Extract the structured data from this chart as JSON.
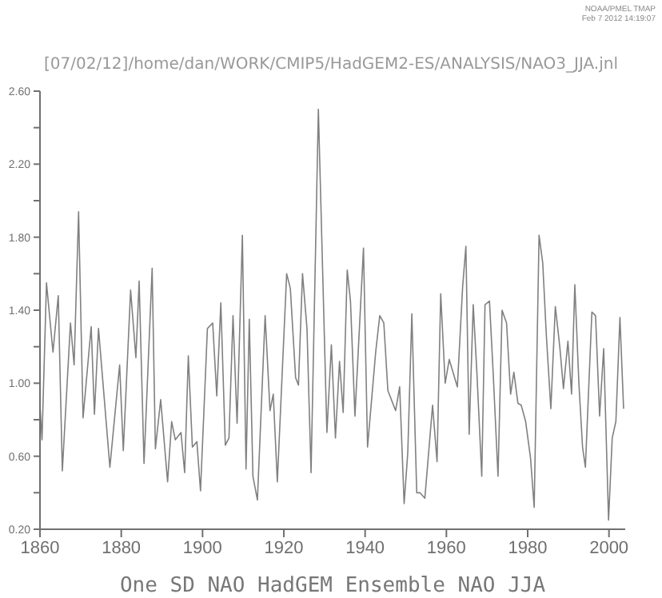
{
  "chart_data": {
    "type": "line",
    "title": "[07/02/12]/home/dan/WORK/CMIP5/HadGEM2-ES/ANALYSIS/NAO3_JJA.jnl",
    "xlabel": "One SD NAO HadGEM Ensemble NAO JJA",
    "annotations": [
      "NOAA/PMEL TMAP",
      "Feb  7 2012 14:19:07"
    ],
    "xlim": [
      1860,
      2004
    ],
    "xticks": [
      1860,
      1880,
      1900,
      1920,
      1940,
      1960,
      1980,
      2000
    ],
    "ylim": [
      0.2,
      2.6
    ],
    "yticks": [
      {
        "value": 0.2,
        "label": "0.20"
      },
      {
        "value": 0.4,
        "label": null
      },
      {
        "value": 0.6,
        "label": "0.60"
      },
      {
        "value": 0.8,
        "label": null
      },
      {
        "value": 1.0,
        "label": "1.00"
      },
      {
        "value": 1.2,
        "label": null
      },
      {
        "value": 1.4,
        "label": "1.40"
      },
      {
        "value": 1.6,
        "label": null
      },
      {
        "value": 1.8,
        "label": "1.80"
      },
      {
        "value": 2.0,
        "label": null
      },
      {
        "value": 2.2,
        "label": "2.20"
      },
      {
        "value": 2.4,
        "label": null
      },
      {
        "value": 2.6,
        "label": "2.60"
      }
    ],
    "grid": false,
    "marker": "none",
    "line_style": "solid",
    "series": [
      {
        "color": "#808080",
        "x": [
          1860.0,
          1860.5,
          1861.6,
          1863.2,
          1864.5,
          1865.5,
          1867.5,
          1868.4,
          1869.5,
          1870.6,
          1872.6,
          1873.4,
          1874.4,
          1877.2,
          1879.6,
          1880.5,
          1882.3,
          1883.6,
          1884.4,
          1885.6,
          1887.6,
          1888.4,
          1889.7,
          1891.4,
          1892.4,
          1893.3,
          1894.7,
          1895.6,
          1896.5,
          1897.5,
          1898.6,
          1899.5,
          1901.2,
          1902.5,
          1903.5,
          1904.5,
          1905.6,
          1906.5,
          1907.5,
          1908.5,
          1909.8,
          1910.7,
          1911.5,
          1912.4,
          1913.5,
          1915.4,
          1916.6,
          1917.4,
          1918.4,
          1920.7,
          1921.6,
          1922.9,
          1923.6,
          1924.6,
          1925.7,
          1926.7,
          1928.5,
          1930.6,
          1931.7,
          1932.7,
          1933.7,
          1934.6,
          1935.6,
          1936.4,
          1937.5,
          1939.6,
          1940.6,
          1942.6,
          1943.6,
          1944.6,
          1945.6,
          1947.5,
          1948.5,
          1949.6,
          1950.5,
          1951.5,
          1952.7,
          1953.5,
          1954.7,
          1956.6,
          1957.7,
          1958.6,
          1959.7,
          1960.7,
          1962.7,
          1964.0,
          1964.8,
          1965.6,
          1966.6,
          1967.5,
          1968.7,
          1969.5,
          1970.6,
          1971.5,
          1972.7,
          1973.7,
          1974.8,
          1975.8,
          1976.6,
          1977.6,
          1978.4,
          1979.5,
          1980.7,
          1981.6,
          1982.8,
          1983.7,
          1984.6,
          1985.7,
          1986.8,
          1987.9,
          1988.8,
          1989.9,
          1990.8,
          1991.6,
          1992.6,
          1993.5,
          1994.2,
          1995.8,
          1996.7,
          1997.7,
          1998.7,
          1999.9,
          2000.8,
          2001.7,
          2002.7,
          2003.6
        ],
        "values": [
          0.88,
          0.69,
          1.55,
          1.17,
          1.48,
          0.52,
          1.33,
          1.1,
          1.94,
          0.81,
          1.31,
          0.83,
          1.3,
          0.54,
          1.1,
          0.63,
          1.51,
          1.14,
          1.56,
          0.56,
          1.63,
          0.64,
          0.91,
          0.46,
          0.79,
          0.69,
          0.73,
          0.51,
          1.15,
          0.65,
          0.68,
          0.41,
          1.3,
          1.33,
          0.93,
          1.44,
          0.66,
          0.7,
          1.37,
          0.78,
          1.81,
          0.53,
          1.35,
          0.49,
          0.36,
          1.37,
          0.85,
          0.94,
          0.46,
          1.6,
          1.52,
          1.03,
          0.99,
          1.6,
          1.3,
          0.51,
          2.5,
          0.73,
          1.21,
          0.7,
          1.12,
          0.84,
          1.62,
          1.45,
          0.82,
          1.74,
          0.65,
          1.17,
          1.37,
          1.33,
          0.96,
          0.85,
          0.98,
          0.34,
          0.62,
          1.38,
          0.4,
          0.4,
          0.37,
          0.88,
          0.57,
          1.49,
          1.0,
          1.13,
          0.98,
          1.53,
          1.75,
          0.72,
          1.43,
          1.06,
          0.49,
          1.43,
          1.45,
          1.06,
          0.49,
          1.4,
          1.33,
          0.94,
          1.06,
          0.89,
          0.88,
          0.79,
          0.59,
          0.32,
          1.81,
          1.66,
          1.26,
          0.86,
          1.42,
          1.2,
          0.97,
          1.23,
          0.94,
          1.54,
          1.0,
          0.65,
          0.54,
          1.39,
          1.37,
          0.82,
          1.19,
          0.25,
          0.7,
          0.79,
          1.36,
          0.86
        ]
      }
    ]
  }
}
